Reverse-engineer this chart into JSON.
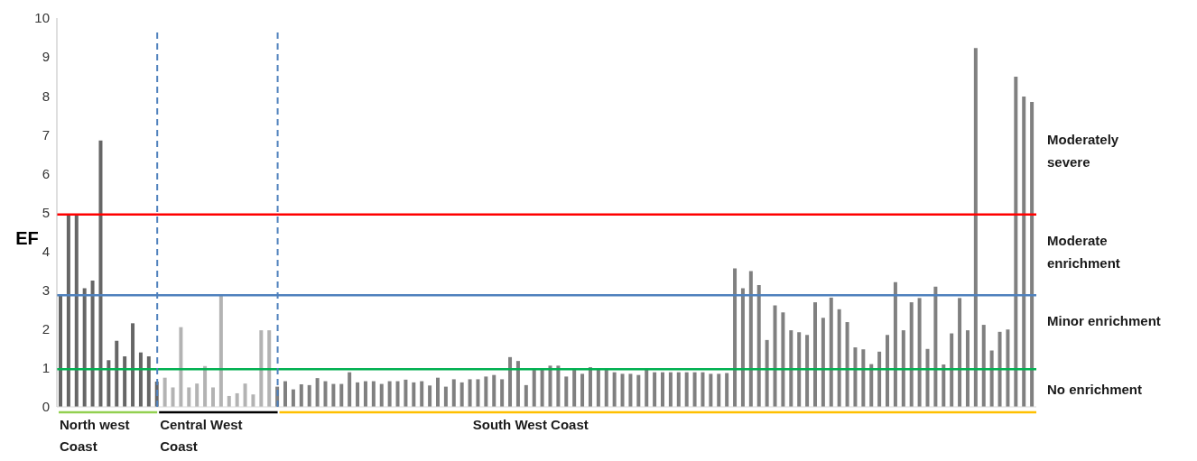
{
  "chart_data": {
    "type": "bar",
    "ylabel": "EF",
    "categories": [
      null,
      null,
      null,
      null,
      null,
      null,
      null,
      null,
      null,
      null,
      null,
      null,
      null,
      null,
      null,
      null,
      null,
      null,
      null,
      null,
      null,
      null,
      null,
      null,
      null,
      null,
      null,
      null,
      null,
      null,
      null,
      null,
      null,
      null,
      null,
      null,
      null,
      null,
      null,
      null,
      null,
      null,
      null,
      null,
      null,
      null,
      null,
      null,
      null,
      null,
      null,
      null,
      null,
      null,
      null,
      null,
      null,
      null,
      null,
      null,
      null,
      null,
      null,
      null,
      null,
      null,
      null,
      null,
      null,
      null,
      null,
      null,
      null,
      null,
      null,
      null,
      null,
      null,
      null,
      null,
      null,
      null,
      null,
      null,
      null,
      null,
      null,
      null,
      null,
      null,
      null,
      null,
      null,
      null,
      null,
      null,
      null,
      null,
      null,
      null,
      null,
      null,
      null,
      null,
      null,
      null,
      null,
      null,
      null,
      null,
      null,
      null,
      null,
      null,
      null,
      null,
      null,
      null,
      null,
      null,
      null,
      null
    ],
    "values": [
      2.9,
      4.95,
      4.95,
      3.05,
      3.25,
      6.85,
      1.2,
      1.7,
      1.3,
      2.15,
      1.4,
      1.3,
      0.65,
      0.75,
      0.5,
      2.05,
      0.5,
      0.6,
      1.05,
      0.5,
      2.9,
      0.28,
      0.35,
      0.6,
      0.32,
      1.97,
      1.97,
      0.52,
      0.66,
      0.45,
      0.58,
      0.56,
      0.74,
      0.66,
      0.59,
      0.59,
      0.89,
      0.63,
      0.66,
      0.66,
      0.59,
      0.66,
      0.66,
      0.7,
      0.63,
      0.66,
      0.55,
      0.75,
      0.52,
      0.71,
      0.63,
      0.71,
      0.71,
      0.78,
      0.82,
      0.71,
      1.28,
      1.18,
      0.56,
      0.95,
      0.95,
      1.06,
      1.06,
      0.78,
      0.95,
      0.85,
      1.02,
      0.98,
      0.95,
      0.89,
      0.85,
      0.85,
      0.82,
      0.98,
      0.89,
      0.89,
      0.89,
      0.89,
      0.89,
      0.89,
      0.89,
      0.85,
      0.85,
      0.87,
      3.56,
      3.05,
      3.49,
      3.13,
      1.72,
      2.61,
      2.43,
      1.97,
      1.92,
      1.85,
      2.69,
      2.29,
      2.81,
      2.51,
      2.18,
      1.53,
      1.48,
      1.1,
      1.42,
      1.85,
      3.21,
      1.97,
      2.69,
      2.8,
      1.49,
      3.09,
      1.09,
      1.89,
      2.8,
      1.97,
      9.23,
      2.11,
      1.45,
      1.93,
      1.99,
      8.49,
      7.98,
      7.84
    ],
    "colors": [
      "#666666",
      "#666666",
      "#666666",
      "#666666",
      "#666666",
      "#666666",
      "#666666",
      "#666666",
      "#666666",
      "#666666",
      "#666666",
      "#666666",
      "#666666",
      "#b3b3b3",
      "#b3b3b3",
      "#b3b3b3",
      "#b3b3b3",
      "#b3b3b3",
      "#b3b3b3",
      "#b3b3b3",
      "#b3b3b3",
      "#b3b3b3",
      "#b3b3b3",
      "#b3b3b3",
      "#b3b3b3",
      "#b3b3b3",
      "#b3b3b3",
      "#808080",
      "#808080",
      "#808080",
      "#808080",
      "#808080",
      "#808080",
      "#808080",
      "#808080",
      "#808080",
      "#808080",
      "#808080",
      "#808080",
      "#808080",
      "#808080",
      "#808080",
      "#808080",
      "#808080",
      "#808080",
      "#808080",
      "#808080",
      "#808080",
      "#808080",
      "#808080",
      "#808080",
      "#808080",
      "#808080",
      "#808080",
      "#808080",
      "#808080",
      "#808080",
      "#808080",
      "#808080",
      "#808080",
      "#808080",
      "#808080",
      "#808080",
      "#808080",
      "#808080",
      "#808080",
      "#808080",
      "#808080",
      "#808080",
      "#808080",
      "#808080",
      "#808080",
      "#808080",
      "#808080",
      "#808080",
      "#808080",
      "#808080",
      "#808080",
      "#808080",
      "#808080",
      "#808080",
      "#808080",
      "#808080",
      "#808080",
      "#808080",
      "#808080",
      "#808080",
      "#808080",
      "#808080",
      "#808080",
      "#808080",
      "#808080",
      "#808080",
      "#808080",
      "#808080",
      "#808080",
      "#808080",
      "#808080",
      "#808080",
      "#808080",
      "#808080",
      "#808080",
      "#808080",
      "#808080",
      "#808080",
      "#808080",
      "#808080",
      "#808080",
      "#808080",
      "#808080",
      "#808080",
      "#808080",
      "#808080",
      "#808080",
      "#808080",
      "#808080",
      "#808080",
      "#808080",
      "#808080",
      "#808080",
      "#808080",
      "#808080"
    ],
    "ylim": [
      0,
      10
    ],
    "yticks": [
      0,
      1,
      2,
      3,
      4,
      5,
      6,
      7,
      8,
      9,
      10
    ],
    "ref_lines": [
      {
        "axis": "y",
        "value": 4.95,
        "color": "#ff0000"
      },
      {
        "axis": "y",
        "value": 2.87,
        "color": "#4f81bd"
      },
      {
        "axis": "y",
        "value": 0.97,
        "color": "#00b050"
      }
    ],
    "annotations": [
      "North west Coast",
      "Central West Coast",
      "South West Coast",
      "Moderately severe",
      "Moderate enrichment",
      "Minor enrichment",
      "No enrichment"
    ]
  }
}
